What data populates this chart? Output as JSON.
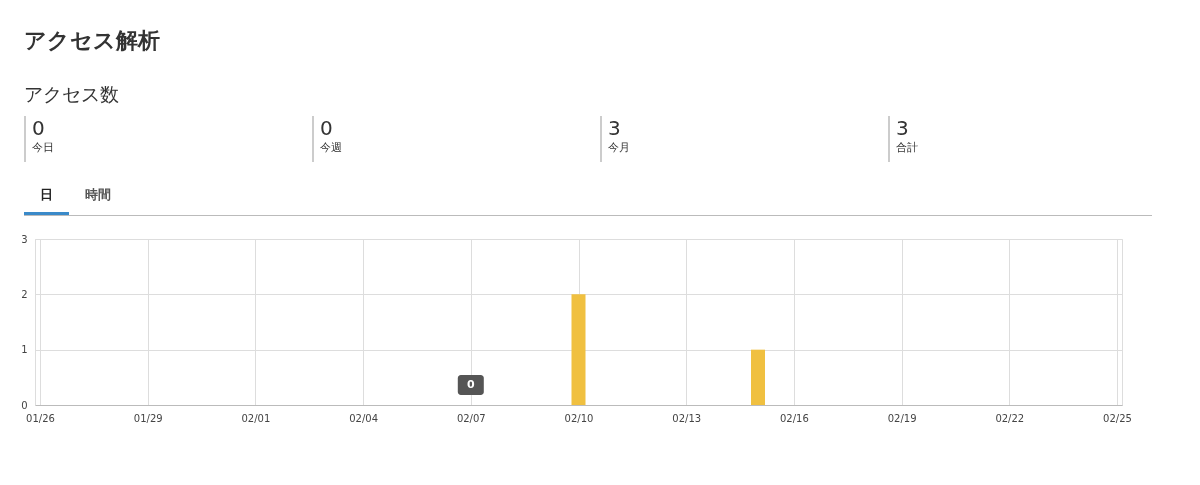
{
  "chart_data": [
    {
      "type": "other",
      "title": "アクセス解析",
      "subtitle": "アクセス数",
      "annotations": [
        "0",
        "今日",
        "0",
        "今週",
        "3",
        "今月",
        "3",
        "合計",
        "日",
        "時間"
      ]
    },
    {
      "type": "bar",
      "x": [
        "--02-07",
        "--02-10",
        "--02-15"
      ],
      "values": [
        0,
        2,
        1
      ],
      "color": "#f0c040",
      "xlim": [
        "--01-26",
        "--02-25"
      ],
      "xticks": [
        {
          "value": "--01-26",
          "label": "01/26"
        },
        {
          "value": "--01-29",
          "label": "01/29"
        },
        {
          "value": "--02-01",
          "label": "02/01"
        },
        {
          "value": "--02-04",
          "label": "02/04"
        },
        {
          "value": "--02-07",
          "label": "02/07"
        },
        {
          "value": "--02-10",
          "label": "02/10"
        },
        {
          "value": "--02-13",
          "label": "02/13"
        },
        {
          "value": "--02-16",
          "label": "02/16"
        },
        {
          "value": "--02-19",
          "label": "02/19"
        },
        {
          "value": "--02-22",
          "label": "02/22"
        },
        {
          "value": "--02-25",
          "label": "02/25"
        }
      ],
      "ylim": [
        0,
        3
      ],
      "yticks": [
        0,
        1,
        2,
        3
      ],
      "grid": true,
      "annotations": [
        {
          "text": "0",
          "x": "--02-07",
          "y": 0
        }
      ]
    }
  ]
}
